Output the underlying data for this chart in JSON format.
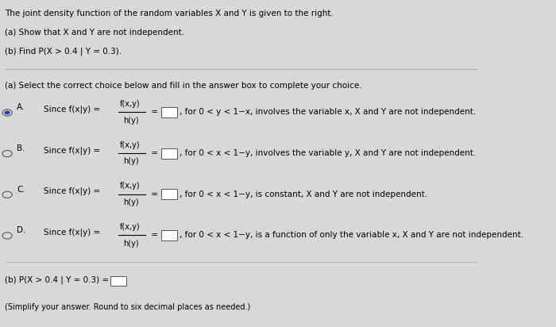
{
  "bg_color": "#d8d8d8",
  "text_color": "#000000",
  "header_lines": [
    "The joint density function of the random variables X and Y is given to the right.",
    "(a) Show that X and Y are not independent.",
    "(b) Find P(X > 0.4 | Y = 0.3)."
  ],
  "section_a_header": "(a) Select the correct choice below and fill in the answer box to complete your choice.",
  "choices": [
    {
      "label": "A.",
      "selected": true,
      "condition": "for 0 < y < 1−x, involves the variable x, X and Y are not independent."
    },
    {
      "label": "B.",
      "selected": false,
      "condition": "for 0 < x < 1−y, involves the variable y, X and Y are not independent."
    },
    {
      "label": "C.",
      "selected": false,
      "condition": "for 0 < x < 1−y, is constant, X and Y are not independent."
    },
    {
      "label": "D.",
      "selected": false,
      "condition": "for 0 < x < 1−y, is a function of only the variable x, X and Y are not independent."
    }
  ],
  "part_b_line": "(b) P(X > 0.4 | Y = 0.3) =",
  "part_b_note": "(Simplify your answer. Round to six decimal places as needed.)"
}
